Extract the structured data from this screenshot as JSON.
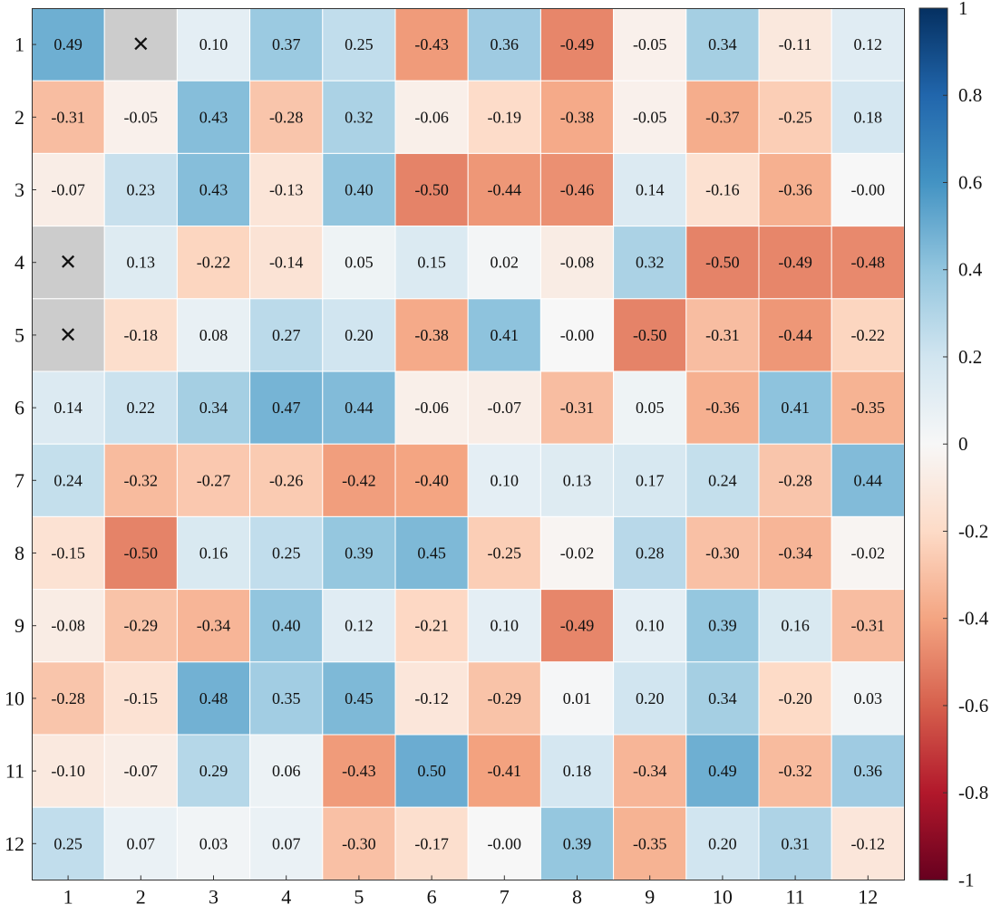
{
  "chart_data": {
    "type": "heatmap",
    "title": "",
    "xlabel": "",
    "ylabel": "",
    "x_categories": [
      "1",
      "2",
      "3",
      "4",
      "5",
      "6",
      "7",
      "8",
      "9",
      "10",
      "11",
      "12"
    ],
    "y_categories": [
      "1",
      "2",
      "3",
      "4",
      "5",
      "6",
      "7",
      "8",
      "9",
      "10",
      "11",
      "12"
    ],
    "missing_marker": "✕",
    "missing_color": "#cccccc",
    "values": [
      [
        0.49,
        null,
        0.1,
        0.37,
        0.25,
        -0.43,
        0.36,
        -0.49,
        -0.05,
        0.34,
        -0.11,
        0.12
      ],
      [
        -0.31,
        -0.05,
        0.43,
        -0.28,
        0.32,
        -0.06,
        -0.19,
        -0.38,
        -0.05,
        -0.37,
        -0.25,
        0.18
      ],
      [
        -0.07,
        0.23,
        0.43,
        -0.13,
        0.4,
        -0.5,
        -0.44,
        -0.46,
        0.14,
        -0.16,
        -0.36,
        -0.0
      ],
      [
        null,
        0.13,
        -0.22,
        -0.14,
        0.05,
        0.15,
        0.02,
        -0.08,
        0.32,
        -0.5,
        -0.49,
        -0.48
      ],
      [
        null,
        -0.18,
        0.08,
        0.27,
        0.2,
        -0.38,
        0.41,
        -0.0,
        -0.5,
        -0.31,
        -0.44,
        -0.22
      ],
      [
        0.14,
        0.22,
        0.34,
        0.47,
        0.44,
        -0.06,
        -0.07,
        -0.31,
        0.05,
        -0.36,
        0.41,
        -0.35
      ],
      [
        0.24,
        -0.32,
        -0.27,
        -0.26,
        -0.42,
        -0.4,
        0.1,
        0.13,
        0.17,
        0.24,
        -0.28,
        0.44
      ],
      [
        -0.15,
        -0.5,
        0.16,
        0.25,
        0.39,
        0.45,
        -0.25,
        -0.02,
        0.28,
        -0.3,
        -0.34,
        -0.02
      ],
      [
        -0.08,
        -0.29,
        -0.34,
        0.4,
        0.12,
        -0.21,
        0.1,
        -0.49,
        0.1,
        0.39,
        0.16,
        -0.31
      ],
      [
        -0.28,
        -0.15,
        0.48,
        0.35,
        0.45,
        -0.12,
        -0.29,
        0.01,
        0.2,
        0.34,
        -0.2,
        0.03
      ],
      [
        -0.1,
        -0.07,
        0.29,
        0.06,
        -0.43,
        0.5,
        -0.41,
        0.18,
        -0.34,
        0.49,
        -0.32,
        0.36
      ],
      [
        0.25,
        0.07,
        0.03,
        0.07,
        -0.3,
        -0.17,
        -0.0,
        0.39,
        -0.35,
        0.2,
        0.31,
        -0.12
      ]
    ],
    "colorbar": {
      "range": [
        -1,
        1
      ],
      "ticks": [
        1,
        0.8,
        0.6,
        0.4,
        0.2,
        0,
        -0.2,
        -0.4,
        -0.6,
        -0.8,
        -1
      ],
      "tick_labels": [
        "1",
        "0.8",
        "0.6",
        "0.4",
        "0.2",
        "0",
        "-0.2",
        "-0.4",
        "-0.6",
        "-0.8",
        "-1"
      ],
      "colormap": "RdBu",
      "colormap_stops": [
        "#67001f",
        "#b2182b",
        "#d6604d",
        "#f4a582",
        "#fddbc7",
        "#f7f7f7",
        "#d1e5f0",
        "#92c5de",
        "#4393c3",
        "#2166ac",
        "#053061"
      ]
    },
    "grid": false,
    "legend": "colorbar-right"
  }
}
